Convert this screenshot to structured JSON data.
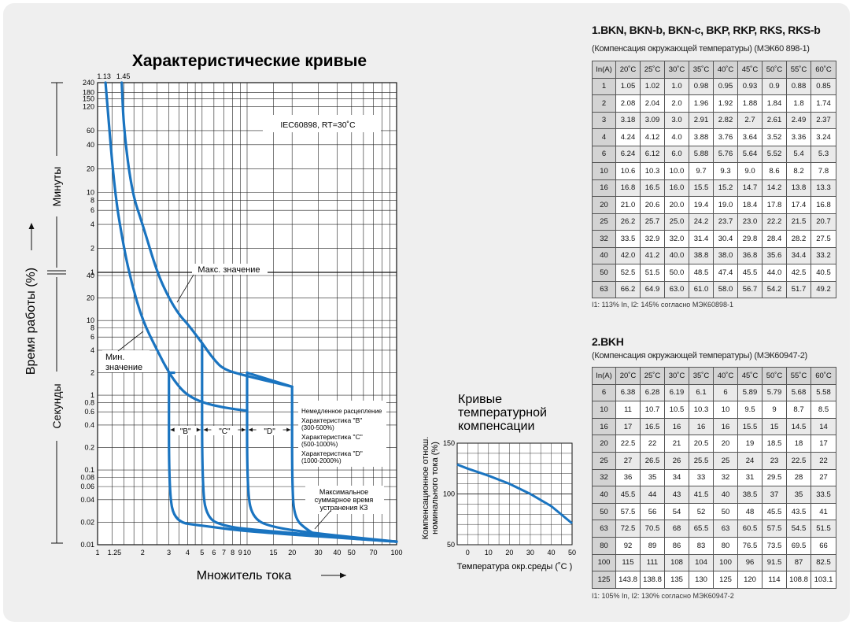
{
  "main_chart": {
    "title": "Характеристические кривые",
    "standard_note": "IEC60898,  RT=30˚C",
    "x_axis_label": "Множитель тока",
    "y_axis_label": "Время работы (%)",
    "y_section_minutes": "Минуты",
    "y_section_seconds": "Секунды",
    "top_marker_1": "1.13",
    "top_marker_2": "1.45",
    "max_label": "Макс. значение",
    "min_label_line1": "Мин.",
    "min_label_line2": "значение",
    "band_b": "\"B\"",
    "band_c": "\"C\"",
    "band_d": "\"D\"",
    "legend_lines": [
      "Немедленное расцепление",
      "Характеристика \"B\"",
      "(300-500%)",
      "Характеристика \"C\"",
      "(500-1000%)",
      "Характеристика \"D\"",
      "(1000-2000%)"
    ],
    "short_circuit_lines": [
      "Максимальное",
      "суммарное время",
      "устранения  КЗ"
    ],
    "x_ticks": [
      {
        "v": 1,
        "label": "1"
      },
      {
        "v": 1.25,
        "label": "1.25"
      },
      {
        "v": 2,
        "label": "2"
      },
      {
        "v": 3,
        "label": "3"
      },
      {
        "v": 4,
        "label": "4"
      },
      {
        "v": 5,
        "label": "5"
      },
      {
        "v": 6,
        "label": "6"
      },
      {
        "v": 7,
        "label": "7"
      },
      {
        "v": 8,
        "label": "8"
      },
      {
        "v": 9,
        "label": "9"
      },
      {
        "v": 10,
        "label": "10"
      },
      {
        "v": 15,
        "label": "15"
      },
      {
        "v": 20,
        "label": "20"
      },
      {
        "v": 30,
        "label": "30"
      },
      {
        "v": 40,
        "label": "40"
      },
      {
        "v": 50,
        "label": "50"
      },
      {
        "v": 70,
        "label": "70"
      },
      {
        "v": 100,
        "label": "100"
      }
    ],
    "y_ticks_minutes": [
      {
        "v": 14400,
        "label": "240"
      },
      {
        "v": 10800,
        "label": "180"
      },
      {
        "v": 9000,
        "label": "150"
      },
      {
        "v": 7200,
        "label": "120"
      },
      {
        "v": 3600,
        "label": "60"
      },
      {
        "v": 2400,
        "label": "40"
      },
      {
        "v": 1200,
        "label": "20"
      },
      {
        "v": 600,
        "label": "10"
      },
      {
        "v": 480,
        "label": "8"
      },
      {
        "v": 360,
        "label": "6"
      },
      {
        "v": 240,
        "label": "4"
      },
      {
        "v": 120,
        "label": "2"
      },
      {
        "v": 60,
        "label": "1"
      }
    ],
    "y_ticks_seconds": [
      {
        "v": 40,
        "label": "40"
      },
      {
        "v": 20,
        "label": "20"
      },
      {
        "v": 10,
        "label": "10"
      },
      {
        "v": 8,
        "label": "8"
      },
      {
        "v": 6,
        "label": "6"
      },
      {
        "v": 4,
        "label": "4"
      },
      {
        "v": 2,
        "label": "2"
      },
      {
        "v": 1,
        "label": "1"
      },
      {
        "v": 0.8,
        "label": "0.8"
      },
      {
        "v": 0.6,
        "label": "0.6"
      },
      {
        "v": 0.4,
        "label": "0.4"
      },
      {
        "v": 0.2,
        "label": "0.2"
      },
      {
        "v": 0.1,
        "label": "0.1"
      },
      {
        "v": 0.08,
        "label": "0.08"
      },
      {
        "v": 0.06,
        "label": "0.06"
      },
      {
        "v": 0.04,
        "label": "0.04"
      },
      {
        "v": 0.02,
        "label": "0.02"
      },
      {
        "v": 0.01,
        "label": "0.01"
      }
    ]
  },
  "temp_chart": {
    "title_lines": [
      "Кривые",
      "температурной",
      "компенсации"
    ],
    "x_label": "Температура окр.среды (˚C )",
    "y_label_line1": "Компенсационное отнош.",
    "y_label_line2": "номинального тока (%)",
    "x_ticks": [
      "0",
      "10",
      "20",
      "30",
      "40",
      "50"
    ],
    "y_ticks": [
      "150",
      "100",
      "50"
    ]
  },
  "chart_data": [
    {
      "type": "line",
      "title": "Характеристические кривые",
      "xlabel": "Множитель тока",
      "ylabel": "Время работы (%)",
      "x_scale": "log",
      "y_scale": "log",
      "xlim": [
        1,
        100
      ],
      "ylim_seconds": [
        0.01,
        14400
      ],
      "grid": true,
      "series": [
        {
          "name": "Макс. значение",
          "x": [
            1.45,
            1.5,
            1.7,
            2.0,
            2.5,
            3.0,
            3.5,
            4.0,
            5.0,
            6.0,
            7.0,
            10.0,
            20.0
          ],
          "y_seconds": [
            14400,
            3600,
            600,
            240,
            60,
            20,
            12,
            9,
            5,
            3,
            2.2,
            1.8,
            1.3
          ]
        },
        {
          "name": "Мин. значение",
          "x": [
            1.13,
            1.3,
            1.5,
            1.7,
            2.0,
            2.5,
            3.0,
            3.5,
            4.0,
            5.0,
            7.0,
            10.0
          ],
          "y_seconds": [
            14400,
            600,
            120,
            30,
            10,
            4,
            2.0,
            1.3,
            1.0,
            0.8,
            0.68,
            0.62
          ]
        },
        {
          "name": "\"B\"",
          "x": [
            3,
            3,
            3.3,
            5,
            10,
            100
          ],
          "y_seconds": [
            2.0,
            0.05,
            0.02,
            0.018,
            0.015,
            0.011
          ]
        },
        {
          "name": "\"C\"",
          "x": [
            5,
            5,
            5.5,
            7,
            10,
            100
          ],
          "y_seconds": [
            5,
            0.05,
            0.022,
            0.018,
            0.016,
            0.011
          ]
        },
        {
          "name": "\"D\"",
          "x": [
            10,
            10,
            11,
            15,
            30,
            100
          ],
          "y_seconds": [
            2.0,
            0.05,
            0.022,
            0.017,
            0.014,
            0.011
          ]
        },
        {
          "x": [
            20,
            20,
            21,
            25,
            30,
            100
          ],
          "y_seconds": [
            1.3,
            0.05,
            0.022,
            0.016,
            0.013,
            0.011
          ]
        }
      ]
    },
    {
      "type": "line",
      "title": "Кривые температурной компенсации",
      "xlabel": "Температура окр.среды (˚C )",
      "ylabel": "Компенсационное отнош. номинального тока (%)",
      "xlim": [
        -5,
        50
      ],
      "ylim": [
        50,
        150
      ],
      "grid": true,
      "series": [
        {
          "x": [
            -5,
            0,
            10,
            20,
            30,
            40,
            50
          ],
          "y": [
            129,
            125,
            118,
            110,
            100,
            88,
            71
          ]
        }
      ]
    },
    {
      "type": "table",
      "title": "1.BKN, BKN-b, BKN-c, BKP, RKP, RKS, RKS-b",
      "subtitle": "(Компенсация окружающей температуры) (МЭК60 898-1)",
      "note": "I1: 113% In, I2: 145% согласно МЭК60898-1",
      "headers": [
        "In(A)",
        "20˚C",
        "25˚C",
        "30˚C",
        "35˚C",
        "40˚C",
        "45˚C",
        "50˚C",
        "55˚C",
        "60˚C"
      ],
      "rows": [
        [
          "1",
          "1.05",
          "1.02",
          "1.0",
          "0.98",
          "0.95",
          "0.93",
          "0.9",
          "0.88",
          "0.85"
        ],
        [
          "2",
          "2.08",
          "2.04",
          "2.0",
          "1.96",
          "1.92",
          "1.88",
          "1.84",
          "1.8",
          "1.74"
        ],
        [
          "3",
          "3.18",
          "3.09",
          "3.0",
          "2.91",
          "2.82",
          "2.7",
          "2.61",
          "2.49",
          "2.37"
        ],
        [
          "4",
          "4.24",
          "4.12",
          "4.0",
          "3.88",
          "3.76",
          "3.64",
          "3.52",
          "3.36",
          "3.24"
        ],
        [
          "6",
          "6.24",
          "6.12",
          "6.0",
          "5.88",
          "5.76",
          "5.64",
          "5.52",
          "5.4",
          "5.3"
        ],
        [
          "10",
          "10.6",
          "10.3",
          "10.0",
          "9.7",
          "9.3",
          "9.0",
          "8.6",
          "8.2",
          "7.8"
        ],
        [
          "16",
          "16.8",
          "16.5",
          "16.0",
          "15.5",
          "15.2",
          "14.7",
          "14.2",
          "13.8",
          "13.3"
        ],
        [
          "20",
          "21.0",
          "20.6",
          "20.0",
          "19.4",
          "19.0",
          "18.4",
          "17.8",
          "17.4",
          "16.8"
        ],
        [
          "25",
          "26.2",
          "25.7",
          "25.0",
          "24.2",
          "23.7",
          "23.0",
          "22.2",
          "21.5",
          "20.7"
        ],
        [
          "32",
          "33.5",
          "32.9",
          "32.0",
          "31.4",
          "30.4",
          "29.8",
          "28.4",
          "28.2",
          "27.5"
        ],
        [
          "40",
          "42.0",
          "41.2",
          "40.0",
          "38.8",
          "38.0",
          "36.8",
          "35.6",
          "34.4",
          "33.2"
        ],
        [
          "50",
          "52.5",
          "51.5",
          "50.0",
          "48.5",
          "47.4",
          "45.5",
          "44.0",
          "42.5",
          "40.5"
        ],
        [
          "63",
          "66.2",
          "64.9",
          "63.0",
          "61.0",
          "58.0",
          "56.7",
          "54.2",
          "51.7",
          "49.2"
        ]
      ]
    },
    {
      "type": "table",
      "title": "2.BKH",
      "subtitle": "(Компенсация окружающей температуры) (МЭК60947-2)",
      "note": "I1: 105% In, I2: 130% согласно МЭК60947-2",
      "headers": [
        "In(A)",
        "20˚C",
        "25˚C",
        "30˚C",
        "35˚C",
        "40˚C",
        "45˚C",
        "50˚C",
        "55˚C",
        "60˚C"
      ],
      "rows": [
        [
          "6",
          "6.38",
          "6.28",
          "6.19",
          "6.1",
          "6",
          "5.89",
          "5.79",
          "5.68",
          "5.58"
        ],
        [
          "10",
          "11",
          "10.7",
          "10.5",
          "10.3",
          "10",
          "9.5",
          "9",
          "8.7",
          "8.5"
        ],
        [
          "16",
          "17",
          "16.5",
          "16",
          "16",
          "16",
          "15.5",
          "15",
          "14.5",
          "14"
        ],
        [
          "20",
          "22.5",
          "22",
          "21",
          "20.5",
          "20",
          "19",
          "18.5",
          "18",
          "17"
        ],
        [
          "25",
          "27",
          "26.5",
          "26",
          "25.5",
          "25",
          "24",
          "23",
          "22.5",
          "22"
        ],
        [
          "32",
          "36",
          "35",
          "34",
          "33",
          "32",
          "31",
          "29.5",
          "28",
          "27"
        ],
        [
          "40",
          "45.5",
          "44",
          "43",
          "41.5",
          "40",
          "38.5",
          "37",
          "35",
          "33.5"
        ],
        [
          "50",
          "57.5",
          "56",
          "54",
          "52",
          "50",
          "48",
          "45.5",
          "43.5",
          "41"
        ],
        [
          "63",
          "72.5",
          "70.5",
          "68",
          "65.5",
          "63",
          "60.5",
          "57.5",
          "54.5",
          "51.5"
        ],
        [
          "80",
          "92",
          "89",
          "86",
          "83",
          "80",
          "76.5",
          "73.5",
          "69.5",
          "66"
        ],
        [
          "100",
          "115",
          "111",
          "108",
          "104",
          "100",
          "96",
          "91.5",
          "87",
          "82.5"
        ],
        [
          "125",
          "143.8",
          "138.8",
          "135",
          "130",
          "125",
          "120",
          "114",
          "108.8",
          "103.1"
        ]
      ]
    }
  ],
  "colors": {
    "curve": "#1a74c0",
    "grid": "#1a1a1a",
    "background": "#efefef",
    "table_header": "#d3d3d3",
    "table_alt_row": "#eaeaea"
  }
}
